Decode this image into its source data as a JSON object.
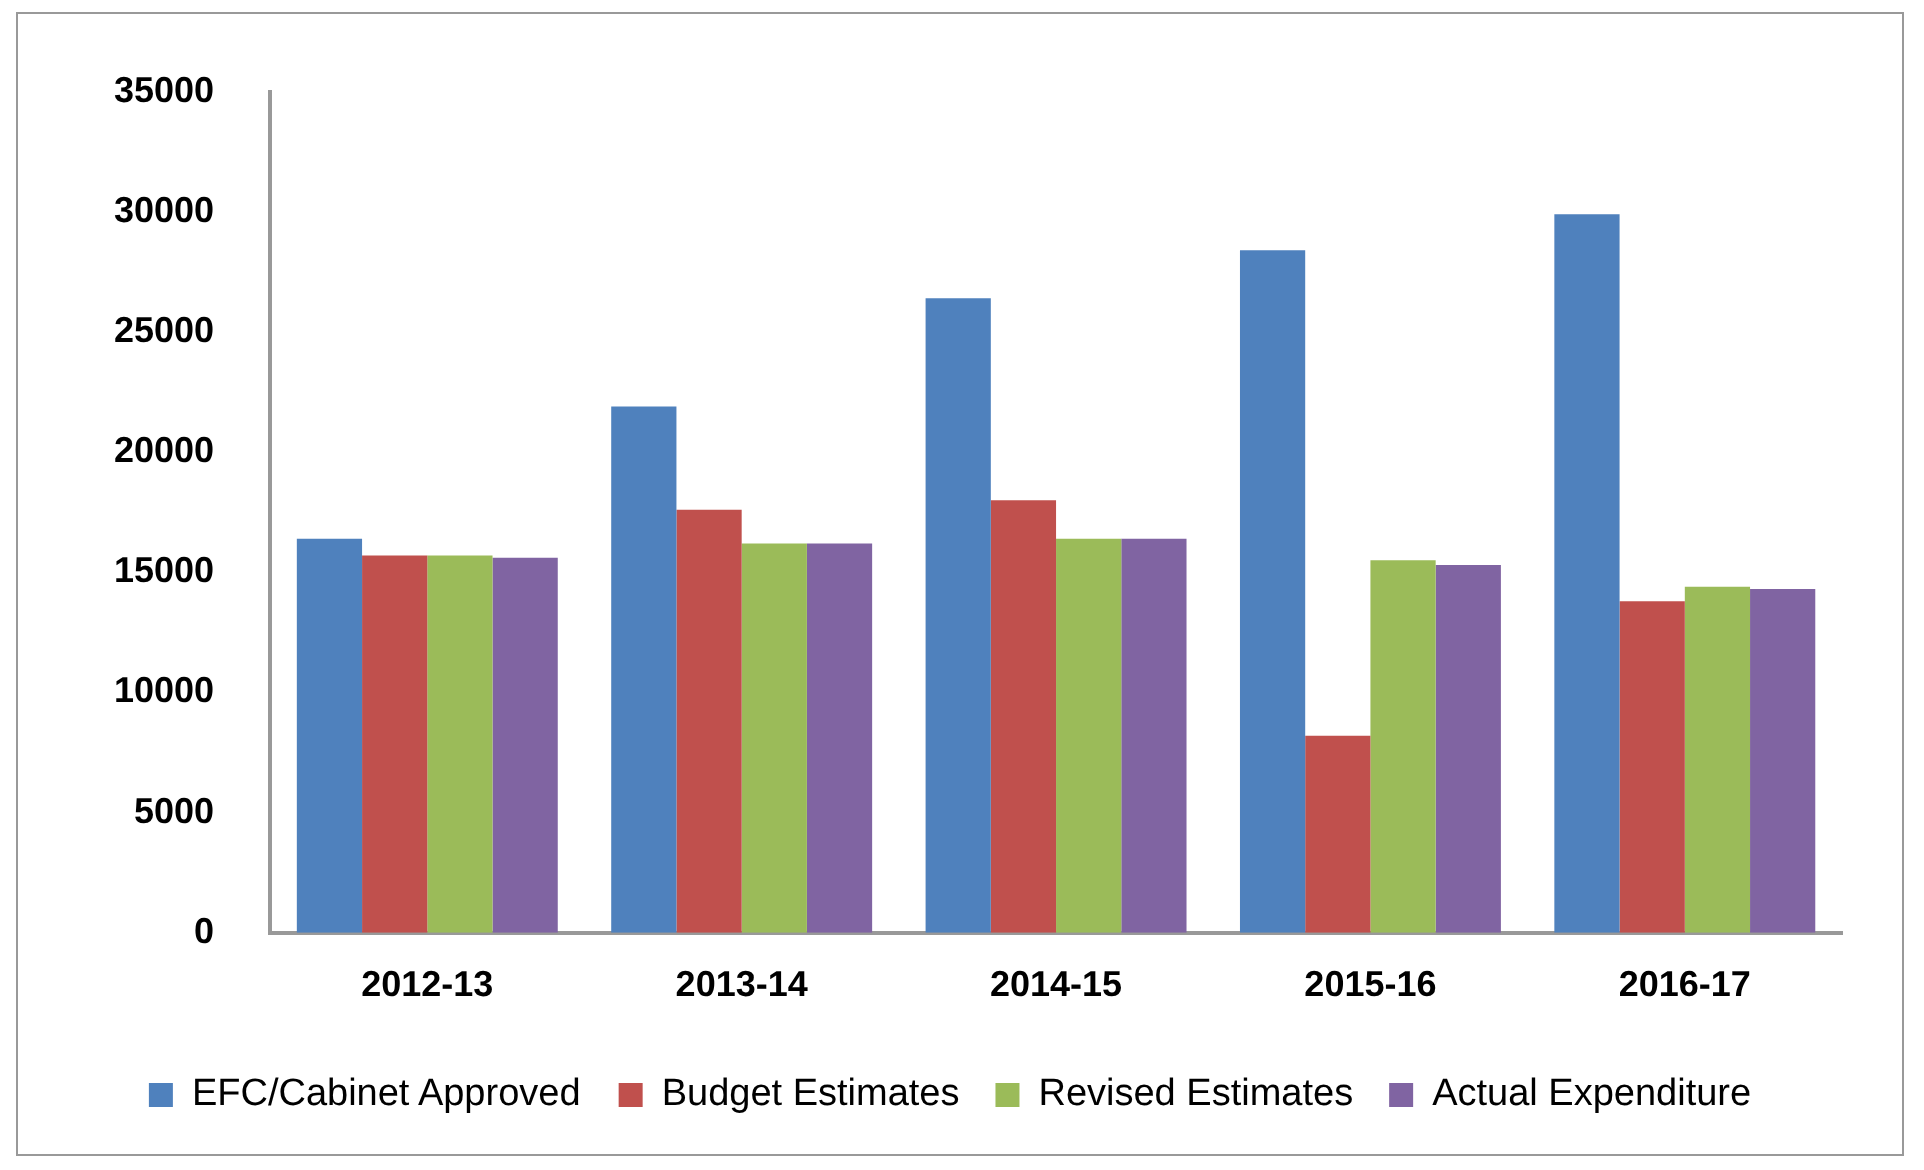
{
  "chart_data": {
    "type": "bar",
    "categories": [
      "2012-13",
      "2013-14",
      "2014-15",
      "2015-16",
      "2016-17"
    ],
    "series": [
      {
        "name": "EFC/Cabinet Approved",
        "color": "#4f81bd",
        "values": [
          16400,
          21900,
          26400,
          28400,
          29900
        ]
      },
      {
        "name": "Budget Estimates",
        "color": "#c0504d",
        "values": [
          15700,
          17600,
          18000,
          8200,
          13800
        ]
      },
      {
        "name": "Revised Estimates",
        "color": "#9bbb59",
        "values": [
          15700,
          16200,
          16400,
          15500,
          14400
        ]
      },
      {
        "name": "Actual Expenditure",
        "color": "#8064a2",
        "values": [
          15600,
          16200,
          16400,
          15300,
          14300
        ]
      }
    ],
    "ylim": [
      0,
      35000
    ],
    "yticks": [
      0,
      5000,
      10000,
      15000,
      20000,
      25000,
      30000,
      35000
    ],
    "grid": false,
    "legend": "bottom"
  }
}
